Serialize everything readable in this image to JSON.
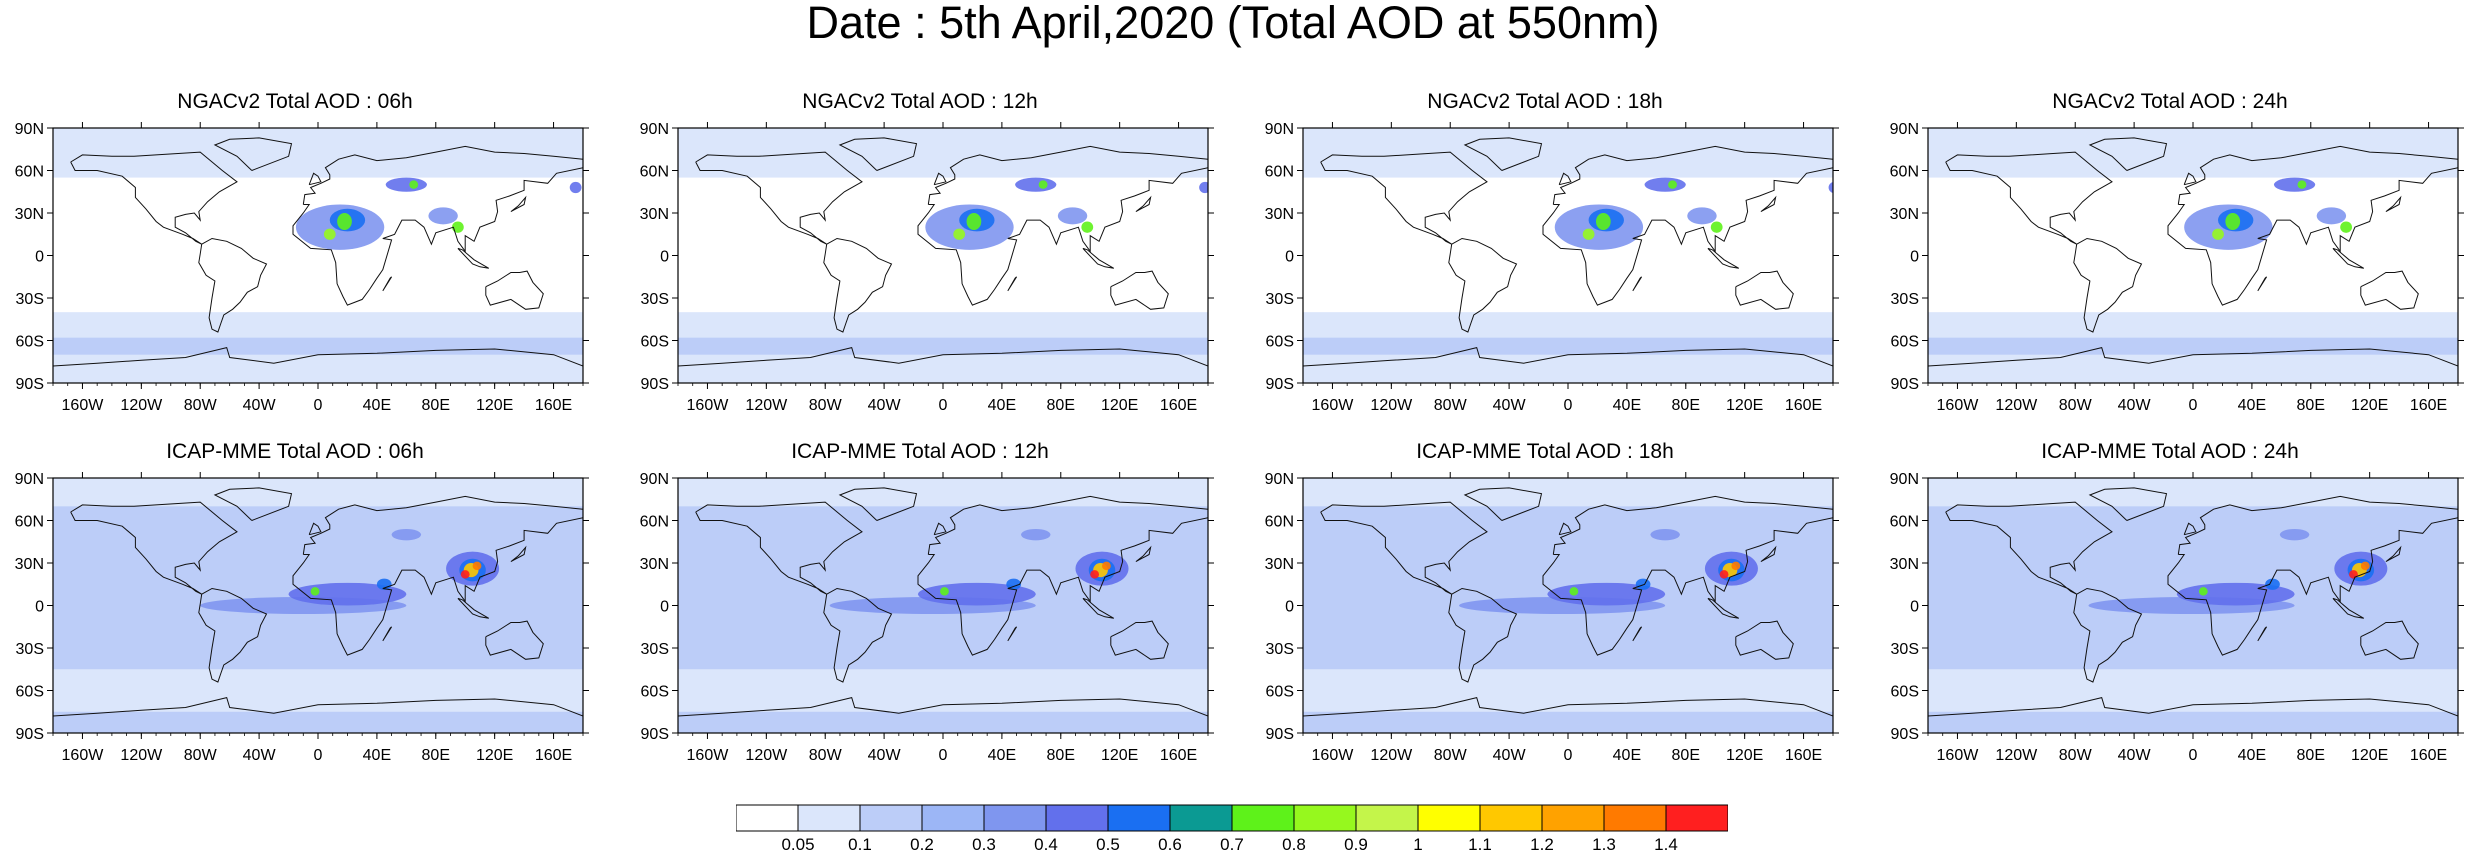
{
  "title": "Date : 5th April,2020 (Total AOD at 550nm)",
  "lat_ticks": [
    "90N",
    "60N",
    "30N",
    "0",
    "30S",
    "60S",
    "90S"
  ],
  "lon_ticks": [
    "160W",
    "120W",
    "80W",
    "40W",
    "0",
    "40E",
    "80E",
    "120E",
    "160E"
  ],
  "rows": [
    {
      "model": "NGACv2",
      "panels": [
        {
          "title": "NGACv2 Total AOD : 06h"
        },
        {
          "title": "NGACv2 Total AOD : 12h"
        },
        {
          "title": "NGACv2 Total AOD : 18h"
        },
        {
          "title": "NGACv2 Total AOD : 24h"
        }
      ]
    },
    {
      "model": "ICAP-MME",
      "panels": [
        {
          "title": "ICAP-MME Total AOD : 06h"
        },
        {
          "title": "ICAP-MME Total AOD : 12h"
        },
        {
          "title": "ICAP-MME Total AOD : 18h"
        },
        {
          "title": "ICAP-MME Total AOD : 24h"
        }
      ]
    }
  ],
  "colorbar": {
    "colors": [
      "#ffffff",
      "#dbe6fb",
      "#bccdf8",
      "#9cb6f6",
      "#7f96ef",
      "#6270ec",
      "#1a6ff2",
      "#0b9a93",
      "#5ef21a",
      "#96f81e",
      "#c4f54a",
      "#ffff00",
      "#ffc800",
      "#ffa200",
      "#ff7a00",
      "#ff1f1f"
    ],
    "labels": [
      "0.05",
      "0.1",
      "0.2",
      "0.3",
      "0.4",
      "0.5",
      "0.6",
      "0.7",
      "0.8",
      "0.9",
      "1",
      "1.1",
      "1.2",
      "1.3",
      "1.4"
    ]
  }
}
